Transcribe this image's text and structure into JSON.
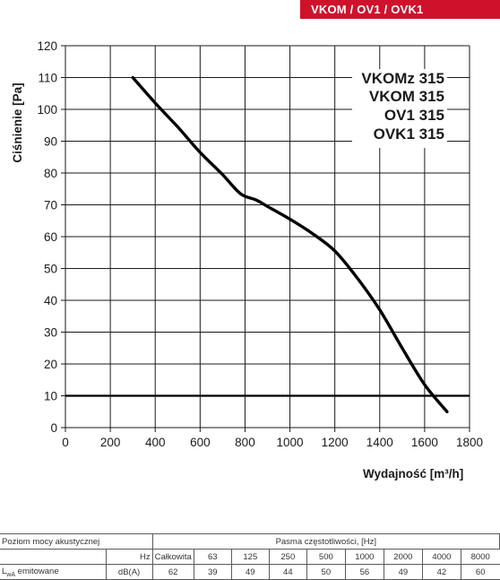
{
  "header": {
    "title": "VKOM / OV1 / OVK1",
    "band_color": "#d0112b"
  },
  "models": [
    "VKOMz 315",
    "VKOM 315",
    "OV1 315",
    "OVK1 315"
  ],
  "chart_data": {
    "type": "line",
    "xlabel": "Wydajność [m³/h]",
    "ylabel": "Ciśnienie [Pa]",
    "xlim": [
      0,
      1800
    ],
    "ylim": [
      0,
      120
    ],
    "x_ticks": [
      0,
      200,
      400,
      600,
      800,
      1000,
      1200,
      1400,
      1600,
      1800
    ],
    "y_ticks": [
      0,
      10,
      20,
      30,
      40,
      50,
      60,
      70,
      80,
      90,
      100,
      110,
      120
    ],
    "grid": true,
    "reference_line_y": 10,
    "series": [
      {
        "x": [
          300,
          400,
          500,
          600,
          700,
          780,
          850,
          900,
          1000,
          1100,
          1200,
          1300,
          1400,
          1500,
          1600,
          1700
        ],
        "y": [
          110,
          102,
          94.5,
          86.5,
          79.5,
          73.5,
          71.5,
          69.5,
          65.5,
          61,
          55.5,
          47,
          37,
          25,
          13.5,
          5
        ],
        "color": "#000000"
      }
    ]
  },
  "acoustic": {
    "level_label": "Poziom mocy akustycznej",
    "band_label": "Pasma częstotliwości, [Hz]",
    "hz_label": "Hz",
    "total_label": "Całkowita",
    "freqs": [
      "63",
      "125",
      "250",
      "500",
      "1000",
      "2000",
      "4000",
      "8000"
    ],
    "row_label_main": "L",
    "row_label_sub": "wA",
    "row_label_rest": " emitowane",
    "unit": "dB(A)",
    "total": "62",
    "values": [
      "39",
      "49",
      "44",
      "50",
      "56",
      "49",
      "42",
      "60"
    ]
  }
}
